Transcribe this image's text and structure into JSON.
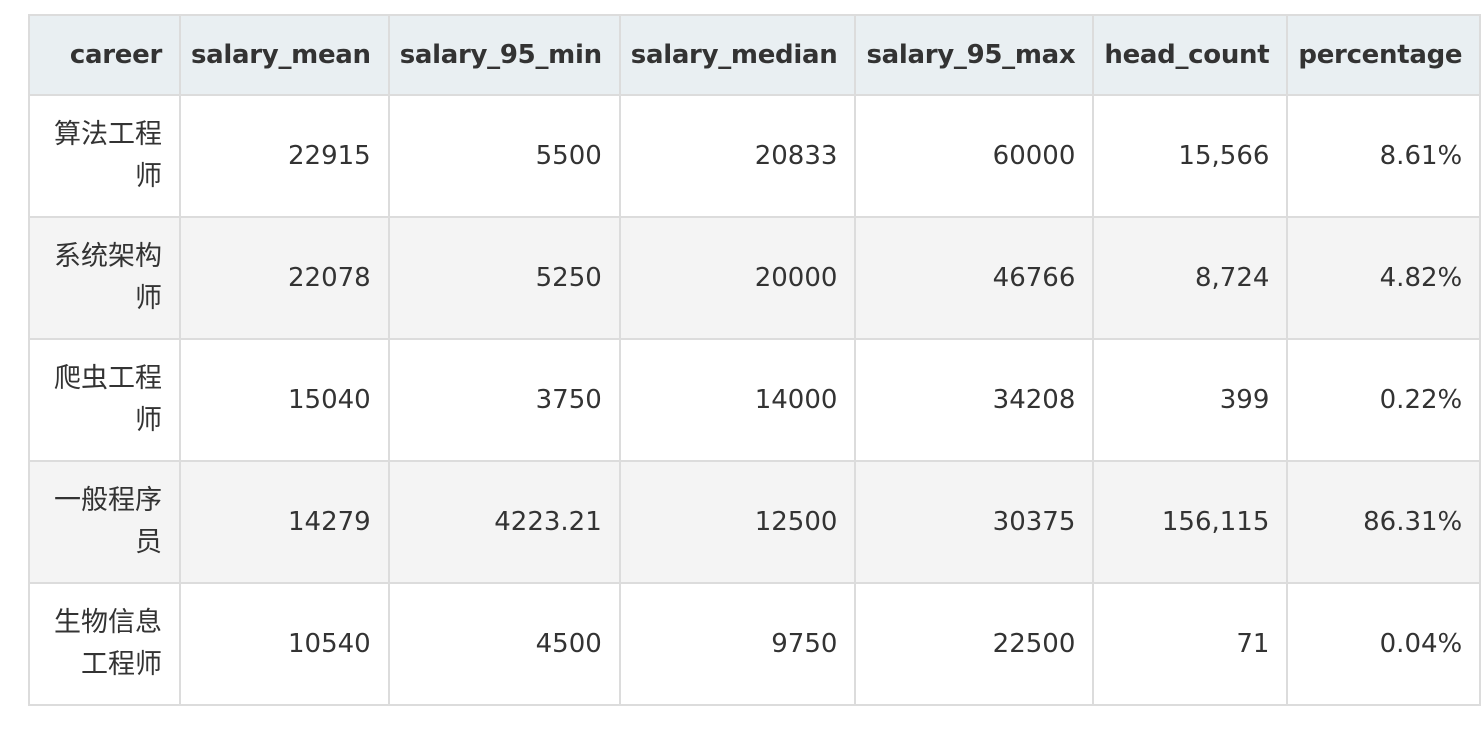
{
  "table": {
    "columns": [
      "career",
      "salary_mean",
      "salary_95_min",
      "salary_median",
      "salary_95_max",
      "head_count",
      "percentage"
    ],
    "rows": [
      {
        "career": "算法工程师",
        "salary_mean": "22915",
        "salary_95_min": "5500",
        "salary_median": "20833",
        "salary_95_max": "60000",
        "head_count": "15,566",
        "percentage": "8.61%"
      },
      {
        "career": "系统架构师",
        "salary_mean": "22078",
        "salary_95_min": "5250",
        "salary_median": "20000",
        "salary_95_max": "46766",
        "head_count": "8,724",
        "percentage": "4.82%"
      },
      {
        "career": "爬虫工程师",
        "salary_mean": "15040",
        "salary_95_min": "3750",
        "salary_median": "14000",
        "salary_95_max": "34208",
        "head_count": "399",
        "percentage": "0.22%"
      },
      {
        "career": "一般程序员",
        "salary_mean": "14279",
        "salary_95_min": "4223.21",
        "salary_median": "12500",
        "salary_95_max": "30375",
        "head_count": "156,115",
        "percentage": "86.31%"
      },
      {
        "career": "生物信息工程师",
        "salary_mean": "10540",
        "salary_95_min": "4500",
        "salary_median": "9750",
        "salary_95_max": "22500",
        "head_count": "71",
        "percentage": "0.04%"
      }
    ]
  },
  "colors": {
    "header_bg": "#e9eff2",
    "stripe_bg": "#f4f4f4",
    "border": "#dcdcdc",
    "text": "#333333"
  }
}
